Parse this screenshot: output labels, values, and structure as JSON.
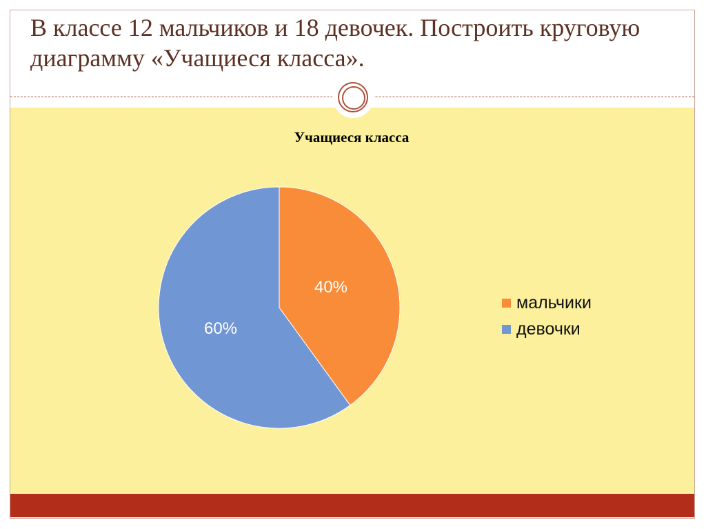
{
  "slide": {
    "title": "В классе 12 мальчиков и 18 девочек. Построить круговую диаграмму «Учащиеся класса».",
    "colors": {
      "panel": "#fcf09c",
      "footer": "#b22d1a",
      "ornament": "#b0503c",
      "title": "#5c3022"
    }
  },
  "chart_data": {
    "type": "pie",
    "title": "Учащиеся класса",
    "categories": [
      "мальчики",
      "девочки"
    ],
    "values": [
      12,
      18
    ],
    "colors": [
      "#f98c38",
      "#7196d4"
    ],
    "data_labels": [
      "40%",
      "60%"
    ],
    "legend_position": "right"
  }
}
